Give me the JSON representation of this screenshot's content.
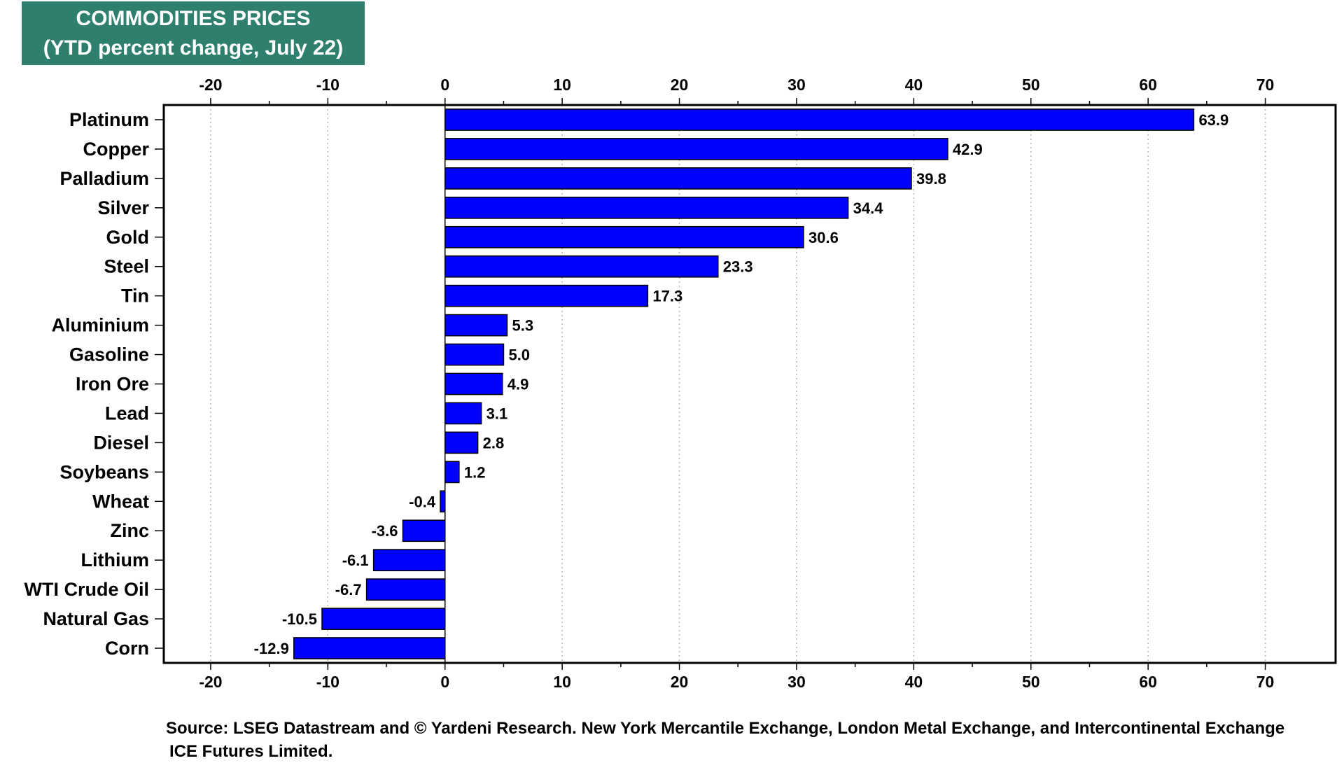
{
  "chart_data": {
    "type": "bar",
    "orientation": "horizontal",
    "title": "COMMODITIES PRICES",
    "subtitle": "(YTD percent change, July 22)",
    "categories": [
      "Platinum",
      "Copper",
      "Palladium",
      "Silver",
      "Gold",
      "Steel",
      "Tin",
      "Aluminium",
      "Gasoline",
      "Iron Ore",
      "Lead",
      "Diesel",
      "Soybeans",
      "Wheat",
      "Zinc",
      "Lithium",
      "WTI Crude Oil",
      "Natural Gas",
      "Corn"
    ],
    "values": [
      63.9,
      42.9,
      39.8,
      34.4,
      30.6,
      23.3,
      17.3,
      5.3,
      5.0,
      4.9,
      3.1,
      2.8,
      1.2,
      -0.4,
      -3.6,
      -6.1,
      -6.7,
      -10.5,
      -12.9
    ],
    "value_labels": [
      "63.9",
      "42.9",
      "39.8",
      "34.4",
      "30.6",
      "23.3",
      "17.3",
      "5.3",
      "5.0",
      "4.9",
      "3.1",
      "2.8",
      "1.2",
      "-0.4",
      "-3.6",
      "-6.1",
      "-6.7",
      "-10.5",
      "-12.9"
    ],
    "xlim": [
      -24,
      76
    ],
    "xticks": [
      -20,
      -10,
      0,
      10,
      20,
      30,
      40,
      50,
      60,
      70
    ],
    "xtick_labels": [
      "-20",
      "-10",
      "0",
      "10",
      "20",
      "30",
      "40",
      "50",
      "60",
      "70"
    ],
    "xaxis_position": "top and bottom",
    "grid": "vertical dotted",
    "bar_color": "#0000ff",
    "title_background": "#2f7f6e"
  },
  "source": {
    "line1": "Source: LSEG Datastream and © Yardeni Research. New York Mercantile Exchange, London Metal Exchange, and Intercontinental Exchange",
    "line2": "ICE Futures Limited."
  }
}
